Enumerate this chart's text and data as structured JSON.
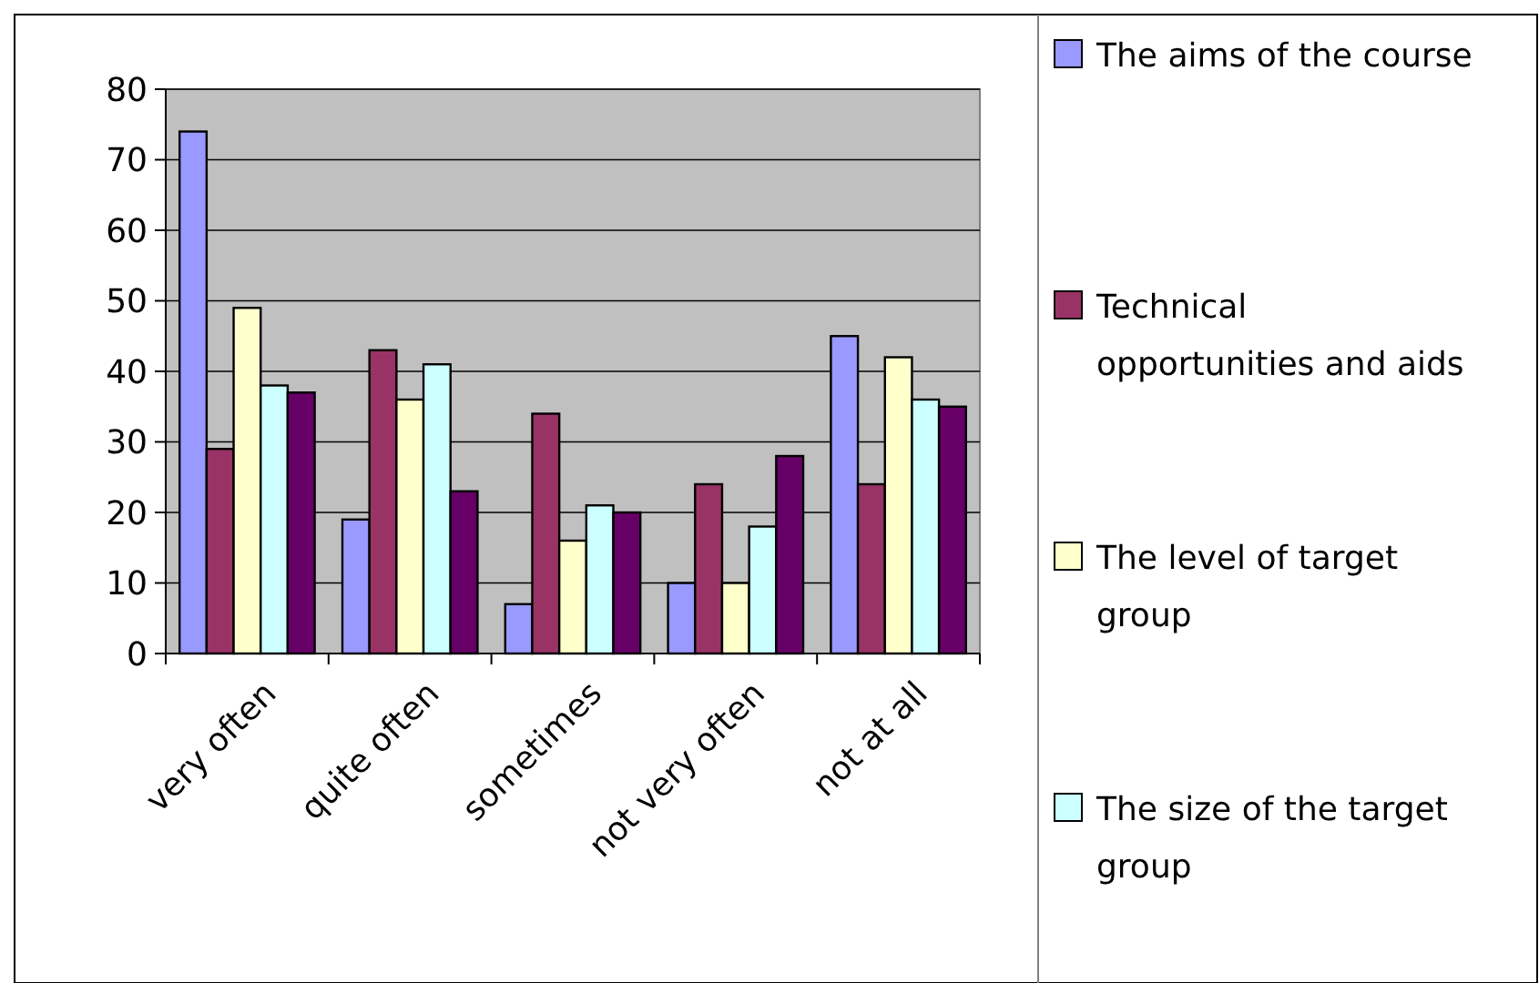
{
  "chart_data": {
    "type": "bar",
    "categories": [
      "very often",
      "quite often",
      "sometimes",
      "not very often",
      "not at all"
    ],
    "series": [
      {
        "name": "The aims of the course",
        "color": "#9999ff",
        "values": [
          74,
          19,
          7,
          10,
          45
        ]
      },
      {
        "name": "Technical opportunities and aids",
        "color": "#993366",
        "values": [
          29,
          43,
          34,
          24,
          24
        ]
      },
      {
        "name": "The level of target group",
        "color": "#ffffcc",
        "values": [
          49,
          36,
          16,
          10,
          42
        ]
      },
      {
        "name": "The size of the target group",
        "color": "#ccffff",
        "values": [
          38,
          41,
          21,
          18,
          36
        ]
      },
      {
        "color": "#660066",
        "values": [
          37,
          23,
          20,
          28,
          35
        ]
      }
    ],
    "ylim": [
      0,
      80
    ],
    "yticks": [
      0,
      10,
      20,
      30,
      40,
      50,
      60,
      70,
      80
    ],
    "grid": "y",
    "legend": "right"
  }
}
